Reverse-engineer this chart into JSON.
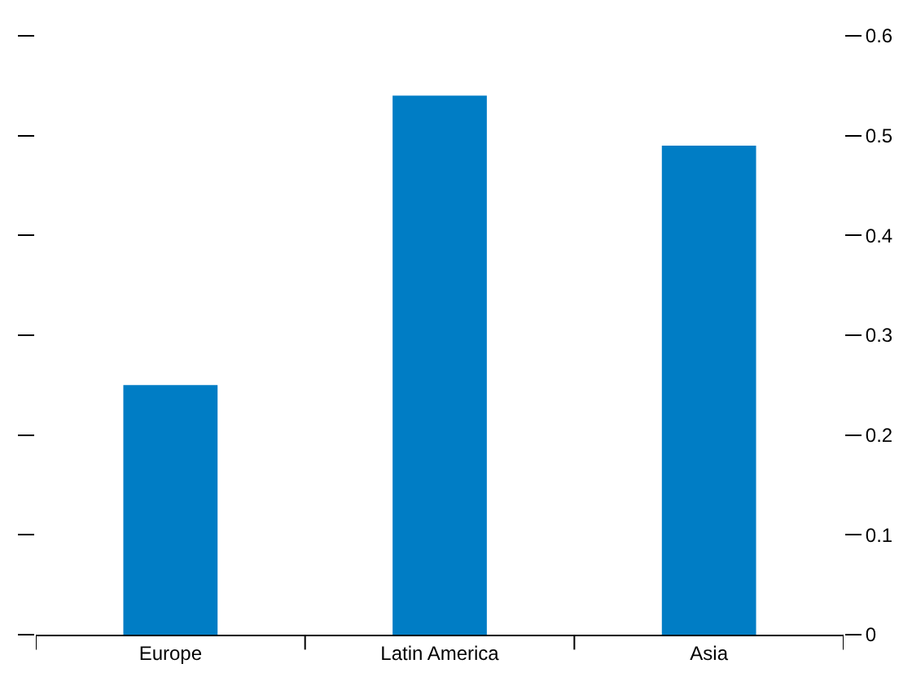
{
  "chart_data": {
    "type": "bar",
    "categories": [
      "Europe",
      "Latin America",
      "Asia"
    ],
    "values": [
      0.25,
      0.54,
      0.49
    ],
    "color": "#007dc5",
    "ylim": [
      0,
      0.6
    ],
    "yticks": [
      0,
      0.1,
      0.2,
      0.3,
      0.4,
      0.5,
      0.6
    ]
  }
}
